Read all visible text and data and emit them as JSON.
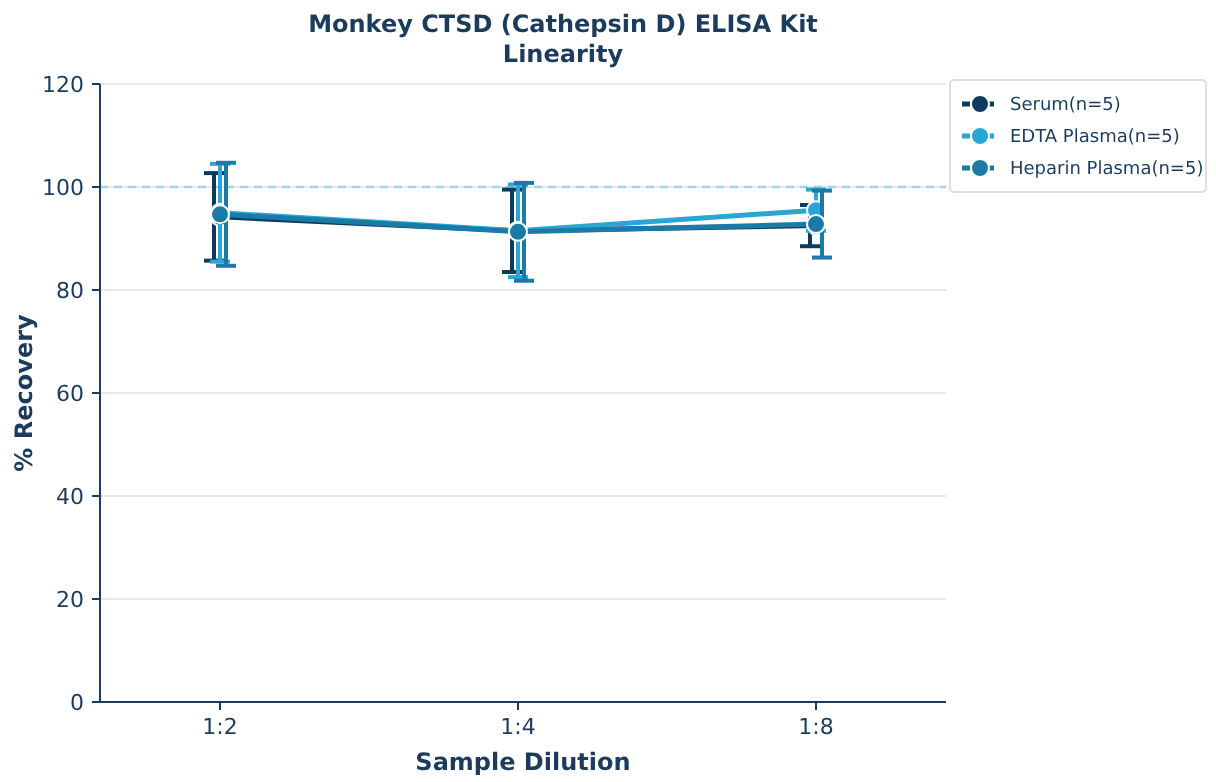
{
  "chart_data": {
    "type": "line",
    "title": "Monkey CTSD (Cathepsin D) ELISA Kit",
    "subtitle": "Linearity",
    "xlabel": "Sample Dilution",
    "ylabel": "% Recovery",
    "categories": [
      "1:2",
      "1:4",
      "1:8"
    ],
    "series": [
      {
        "name": "Serum(n=5)",
        "color": "#0e3a5c",
        "values": [
          94.2,
          91.5,
          92.5
        ],
        "errors": [
          8.5,
          8,
          4
        ]
      },
      {
        "name": "EDTA Plasma(n=5)",
        "color": "#2aa6d6",
        "values": [
          95,
          91.5,
          95.5
        ],
        "errors": [
          9.5,
          9,
          4
        ]
      },
      {
        "name": "Heparin Plasma(n=5)",
        "color": "#1b7aa6",
        "values": [
          94.7,
          91.3,
          92.8
        ],
        "errors": [
          10,
          9.5,
          6.5
        ]
      }
    ],
    "ylim": [
      0,
      120
    ],
    "yticks": [
      0,
      20,
      40,
      60,
      80,
      100,
      120
    ],
    "grid": "y",
    "legend": "top right",
    "marker": "circle",
    "ref_lines": [
      {
        "axis": "y",
        "value": 100,
        "color": "#9fd3ea",
        "line_style": "dashed"
      }
    ]
  }
}
